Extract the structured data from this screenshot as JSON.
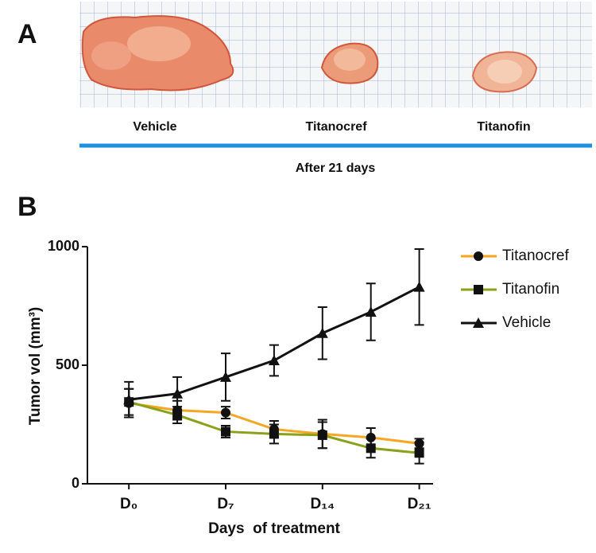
{
  "panel_a": {
    "label": "A",
    "samples": [
      "Vehicle",
      "Titanocref",
      "Titanofin"
    ],
    "caption": "After 21 days"
  },
  "chart_data": {
    "type": "line",
    "panel_label": "B",
    "x_label": "Days  of treatment",
    "y_label": "Tumor vol (mm³)",
    "x": [
      0,
      3.5,
      7,
      10.5,
      14,
      17.5,
      21
    ],
    "xlim": [
      -3,
      22
    ],
    "xticks": [
      {
        "value": 0,
        "label": "D₀"
      },
      {
        "value": 7,
        "label": "D₇"
      },
      {
        "value": 14,
        "label": "D₁₄"
      },
      {
        "value": 21,
        "label": "D₂₁"
      }
    ],
    "ylim": [
      0,
      1000
    ],
    "yticks": [
      0,
      500,
      1000
    ],
    "legend": "top-right",
    "series": [
      {
        "name": "Titanocref",
        "color": "#f5a623",
        "marker": "circle",
        "values": [
          340,
          310,
          300,
          230,
          210,
          195,
          170
        ],
        "errors": [
          60,
          40,
          25,
          35,
          60,
          40,
          20
        ]
      },
      {
        "name": "Titanofin",
        "color": "#8aa11a",
        "marker": "square",
        "values": [
          345,
          290,
          220,
          210,
          205,
          150,
          130
        ],
        "errors": [
          55,
          35,
          25,
          40,
          55,
          40,
          45
        ]
      },
      {
        "name": "Vehicle",
        "color": "#111111",
        "marker": "triangle",
        "values": [
          355,
          380,
          450,
          520,
          635,
          725,
          830
        ],
        "errors": [
          75,
          70,
          100,
          65,
          110,
          120,
          160
        ]
      }
    ]
  }
}
